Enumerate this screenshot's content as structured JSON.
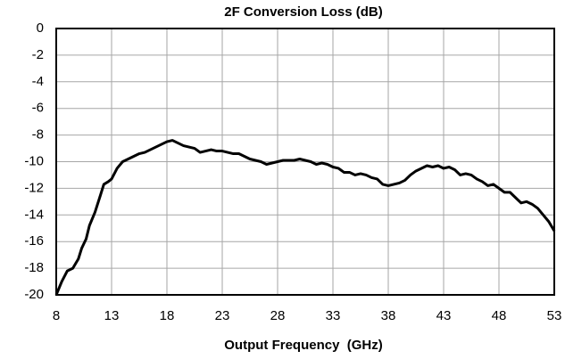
{
  "chart_data": {
    "type": "line",
    "title": "2F Conversion Loss (dB)",
    "x_label": "Output Frequency  (GHz)",
    "x": [
      8,
      8.5,
      9,
      9.5,
      10,
      10.3,
      10.7,
      11,
      11.5,
      12,
      12.3,
      12.7,
      13,
      13.5,
      14,
      14.5,
      15,
      15.5,
      16,
      16.5,
      17,
      17.5,
      18,
      18.5,
      19,
      19.5,
      20,
      20.5,
      21,
      21.5,
      22,
      22.5,
      23,
      23.5,
      24,
      24.5,
      25,
      25.5,
      26,
      26.5,
      27,
      27.5,
      28,
      28.5,
      29,
      29.5,
      30,
      30.5,
      31,
      31.5,
      32,
      32.5,
      33,
      33.5,
      34,
      34.5,
      35,
      35.5,
      36,
      36.5,
      37,
      37.5,
      38,
      38.5,
      39,
      39.5,
      40,
      40.5,
      41,
      41.5,
      42,
      42.5,
      43,
      43.5,
      44,
      44.5,
      45,
      45.5,
      46,
      46.5,
      47,
      47.5,
      48,
      48.5,
      49,
      49.5,
      50,
      50.5,
      51,
      51.5,
      52,
      52.5,
      53
    ],
    "values": [
      -20,
      -19,
      -18.2,
      -18,
      -17.3,
      -16.5,
      -15.8,
      -14.8,
      -13.8,
      -12.5,
      -11.7,
      -11.5,
      -11.3,
      -10.5,
      -10,
      -9.8,
      -9.6,
      -9.4,
      -9.3,
      -9.1,
      -8.9,
      -8.7,
      -8.5,
      -8.4,
      -8.6,
      -8.8,
      -8.9,
      -9.0,
      -9.3,
      -9.2,
      -9.1,
      -9.2,
      -9.2,
      -9.3,
      -9.4,
      -9.4,
      -9.6,
      -9.8,
      -9.9,
      -10.0,
      -10.2,
      -10.1,
      -10.0,
      -9.9,
      -9.9,
      -9.9,
      -9.8,
      -9.9,
      -10.0,
      -10.2,
      -10.1,
      -10.2,
      -10.4,
      -10.5,
      -10.8,
      -10.8,
      -11.0,
      -10.9,
      -11.0,
      -11.2,
      -11.3,
      -11.7,
      -11.8,
      -11.7,
      -11.6,
      -11.4,
      -11.0,
      -10.7,
      -10.5,
      -10.3,
      -10.4,
      -10.3,
      -10.5,
      -10.4,
      -10.6,
      -11.0,
      -10.9,
      -11.0,
      -11.3,
      -11.5,
      -11.8,
      -11.7,
      -12.0,
      -12.3,
      -12.3,
      -12.7,
      -13.1,
      -13.0,
      -13.2,
      -13.5,
      -14.0,
      -14.5,
      -15.2
    ],
    "color": "#000000",
    "xlim": [
      8,
      53
    ],
    "xticks": [
      8,
      13,
      18,
      23,
      28,
      33,
      38,
      43,
      48,
      53
    ],
    "ylim": [
      -20,
      0
    ],
    "yticks": [
      0,
      -2,
      -4,
      -6,
      -8,
      -10,
      -12,
      -14,
      -16,
      -18,
      -20
    ],
    "grid": true
  }
}
